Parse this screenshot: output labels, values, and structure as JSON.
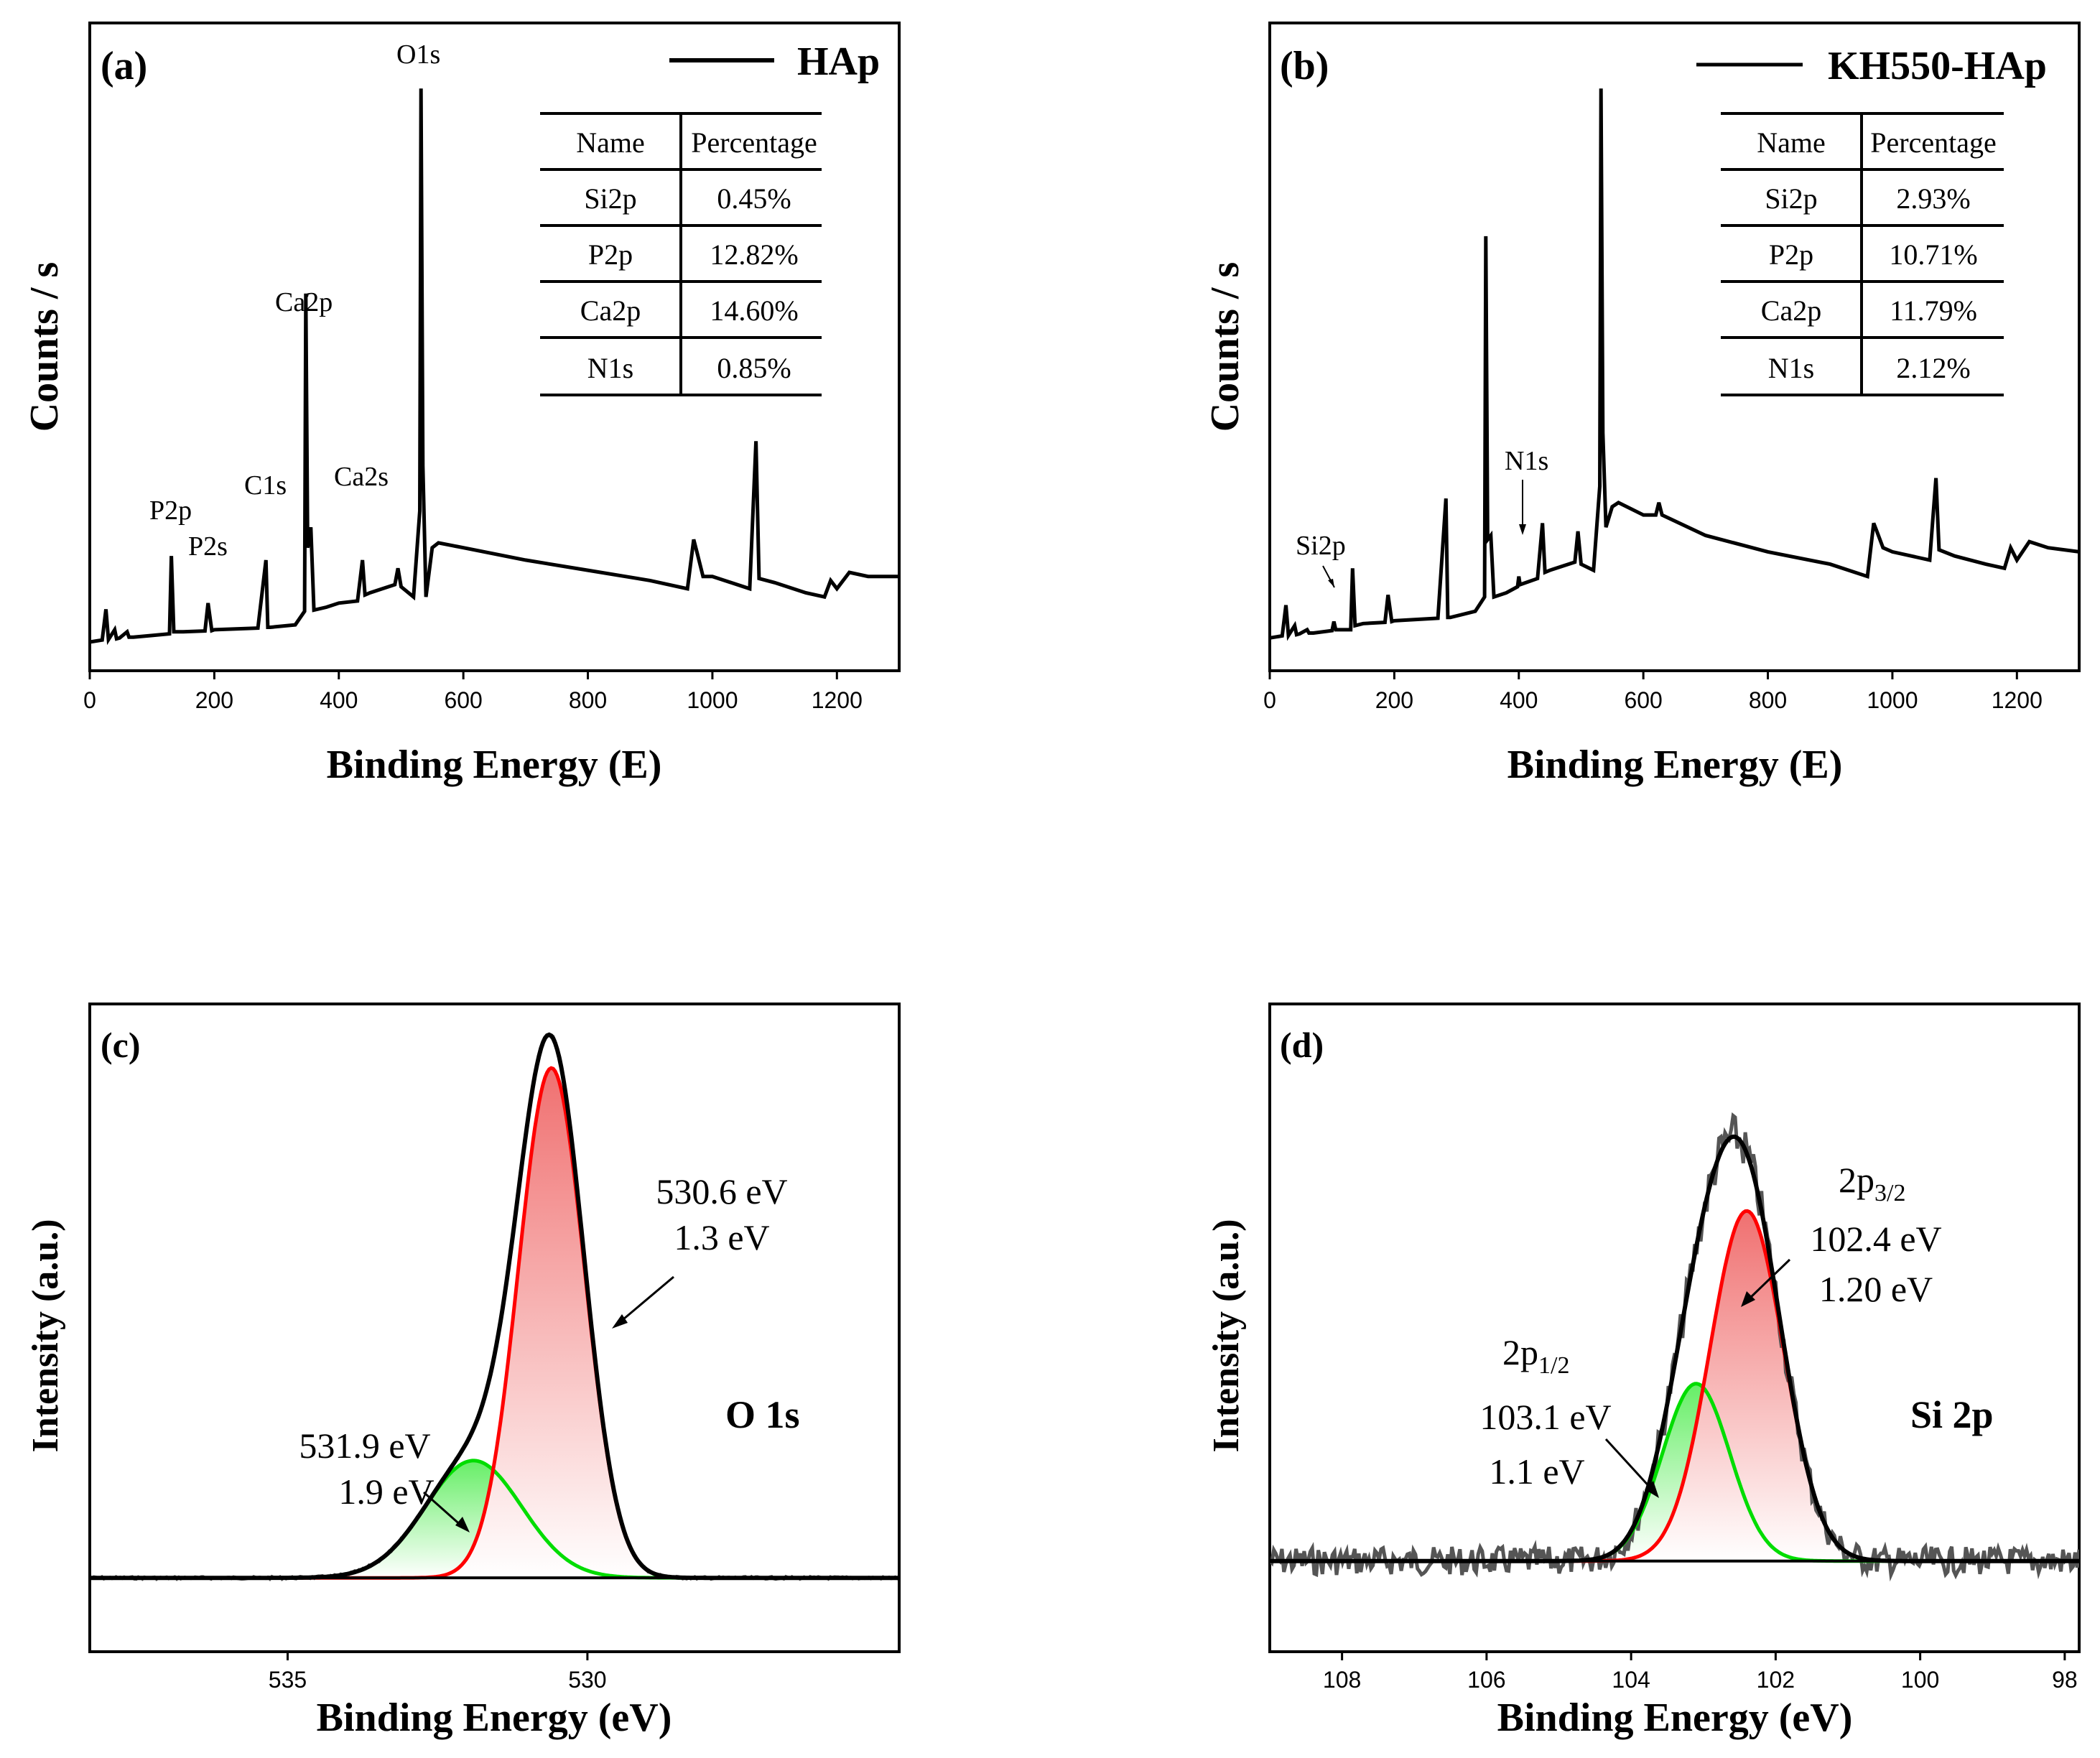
{
  "chart_data": [
    {
      "panel": "(a)",
      "type": "line",
      "legend": "HAp",
      "xlabel": "Binding Energy (E)",
      "ylabel": "Counts / s",
      "xlim": [
        0,
        1300
      ],
      "xticks": [
        0,
        200,
        400,
        600,
        800,
        1000,
        1200
      ],
      "series": [
        {
          "name": "HAp",
          "x": [
            0,
            20,
            26,
            30,
            40,
            43,
            48,
            60,
            63,
            70,
            100,
            128,
            131,
            135,
            150,
            185,
            190,
            196,
            200,
            270,
            283,
            286,
            290,
            330,
            345,
            347,
            350,
            355,
            360,
            380,
            400,
            430,
            438,
            442,
            450,
            470,
            490,
            495,
            500,
            520,
            530,
            532,
            535,
            540,
            550,
            560,
            600,
            700,
            800,
            900,
            960,
            970,
            975,
            985,
            1000,
            1060,
            1070,
            1075,
            1100,
            1150,
            1180,
            1190,
            1200,
            1220,
            1250,
            1300
          ],
          "y": [
            70,
            75,
            150,
            76,
            100,
            78,
            80,
            95,
            82,
            82,
            86,
            90,
            280,
            95,
            95,
            97,
            165,
            98,
            100,
            104,
            270,
            106,
            106,
            112,
            145,
            920,
            300,
            350,
            148,
            155,
            165,
            170,
            270,
            185,
            190,
            200,
            210,
            250,
            205,
            180,
            390,
            1420,
            500,
            180,
            300,
            312,
            300,
            270,
            245,
            220,
            200,
            320,
            290,
            230,
            230,
            200,
            560,
            225,
            215,
            190,
            180,
            220,
            200,
            240,
            230,
            230
          ]
        }
      ],
      "peak_labels": [
        "O1s",
        "Ca2p",
        "Ca2s",
        "C1s",
        "P2p",
        "P2s"
      ],
      "table": {
        "headers": [
          "Name",
          "Percentage"
        ],
        "rows": [
          [
            "Si2p",
            "0.45%"
          ],
          [
            "P2p",
            "12.82%"
          ],
          [
            "Ca2p",
            "14.60%"
          ],
          [
            "N1s",
            "0.85%"
          ]
        ]
      }
    },
    {
      "panel": "(b)",
      "type": "line",
      "legend": "KH550-HAp",
      "xlabel": "Binding Energy (E)",
      "ylabel": "Counts / s",
      "xlim": [
        0,
        1300
      ],
      "xticks": [
        0,
        200,
        400,
        600,
        800,
        1000,
        1200
      ],
      "series": [
        {
          "name": "KH550-HAp",
          "x": [
            0,
            20,
            26,
            30,
            40,
            43,
            48,
            60,
            63,
            70,
            100,
            103,
            106,
            130,
            133,
            137,
            150,
            185,
            190,
            196,
            200,
            270,
            283,
            286,
            290,
            330,
            345,
            347,
            350,
            355,
            360,
            380,
            398,
            400,
            402,
            430,
            438,
            442,
            450,
            470,
            490,
            495,
            500,
            520,
            530,
            532,
            535,
            540,
            550,
            560,
            600,
            620,
            625,
            630,
            700,
            800,
            900,
            960,
            970,
            975,
            985,
            1000,
            1060,
            1070,
            1075,
            1100,
            1150,
            1180,
            1190,
            1200,
            1220,
            1250,
            1300
          ],
          "y": [
            80,
            85,
            160,
            86,
            110,
            88,
            90,
            100,
            92,
            92,
            98,
            120,
            100,
            100,
            250,
            110,
            115,
            118,
            185,
            120,
            122,
            128,
            420,
            130,
            130,
            145,
            180,
            1060,
            320,
            330,
            180,
            190,
            205,
            230,
            210,
            225,
            360,
            240,
            245,
            255,
            265,
            340,
            260,
            245,
            450,
            1420,
            580,
            350,
            400,
            410,
            380,
            380,
            410,
            380,
            330,
            290,
            260,
            230,
            360,
            340,
            300,
            290,
            270,
            470,
            295,
            280,
            260,
            250,
            300,
            270,
            315,
            300,
            290
          ]
        }
      ],
      "peak_labels": [
        "Si2p",
        "N1s"
      ],
      "table": {
        "headers": [
          "Name",
          "Percentage"
        ],
        "rows": [
          [
            "Si2p",
            "2.93%"
          ],
          [
            "P2p",
            "10.71%"
          ],
          [
            "Ca2p",
            "11.79%"
          ],
          [
            "N1s",
            "2.12%"
          ]
        ]
      }
    },
    {
      "panel": "(c)",
      "type": "area",
      "title": "O 1s",
      "xlabel": "Binding Energy (eV)",
      "ylabel": "Intensity (a.u.)",
      "xlim": [
        538.3,
        524.8
      ],
      "xticks": [
        535,
        530
      ],
      "series": [
        {
          "name": "peak 530.6 eV",
          "center": 530.6,
          "fwhm": 1.3,
          "amplitude": 1.0,
          "color": "#ff0000"
        },
        {
          "name": "peak 531.9 eV",
          "center": 531.9,
          "fwhm": 1.9,
          "amplitude": 0.23,
          "color": "#00dd00"
        }
      ],
      "annotations": [
        {
          "lines": [
            "530.6 eV",
            "1.3 eV"
          ]
        },
        {
          "lines": [
            "531.9 eV",
            "1.9 eV"
          ]
        }
      ]
    },
    {
      "panel": "(d)",
      "type": "area",
      "title": "Si 2p",
      "xlabel": "Binding Energy (eV)",
      "ylabel": "Intensity (a.u.)",
      "xlim": [
        109,
        97.8
      ],
      "xticks": [
        108,
        106,
        104,
        102,
        100,
        98
      ],
      "series": [
        {
          "name": "2p3/2",
          "center": 102.4,
          "fwhm": 1.2,
          "amplitude": 0.75,
          "color": "#ff0000"
        },
        {
          "name": "2p1/2",
          "center": 103.1,
          "fwhm": 1.1,
          "amplitude": 0.38,
          "color": "#00dd00"
        }
      ],
      "annotations": [
        {
          "label": "2p",
          "sub": "3/2",
          "lines": [
            "102.4 eV",
            "1.20 eV"
          ]
        },
        {
          "label": "2p",
          "sub": "1/2",
          "lines": [
            "103.1 eV",
            "1.1 eV"
          ]
        }
      ]
    }
  ]
}
